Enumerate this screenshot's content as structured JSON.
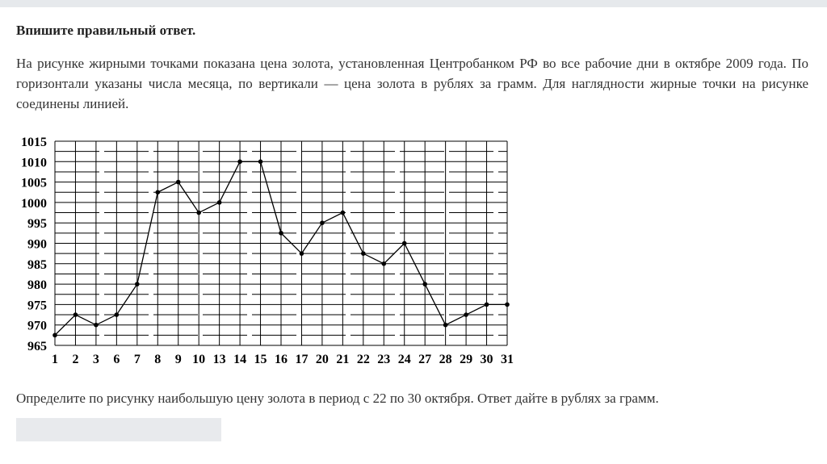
{
  "instruction": "Впишите правильный ответ.",
  "statement": "На рисунке жирными точками показана цена золота, установленная Центробанком РФ во все рабочие дни в октябре 2009 года. По горизонтали указаны числа месяца, по вертикали — цена золота в рублях за грамм. Для наглядности жирные точки на рисунке соединены линией.",
  "question": "Определите по рисунку наибольшую цену золота в период с 22 по 30 октября.  Ответ дайте в рублях за грамм.",
  "answer": {
    "value": "",
    "placeholder": ""
  },
  "chart_data": {
    "type": "line",
    "title": "",
    "xlabel": "",
    "ylabel": "",
    "categories": [
      "1",
      "2",
      "3",
      "6",
      "7",
      "8",
      "9",
      "10",
      "13",
      "14",
      "15",
      "16",
      "17",
      "20",
      "21",
      "22",
      "23",
      "24",
      "27",
      "28",
      "29",
      "30",
      "31"
    ],
    "series": [
      {
        "values": [
          967.5,
          972.5,
          970,
          972.5,
          980,
          1002.5,
          1005,
          997.5,
          1000,
          1010,
          1010,
          992.5,
          987.5,
          995,
          997.5,
          987.5,
          985,
          990,
          980,
          970,
          972.5,
          975,
          975
        ]
      }
    ],
    "ylim": [
      965,
      1015
    ],
    "yticks": [
      965,
      970,
      975,
      980,
      985,
      990,
      995,
      1000,
      1005,
      1010,
      1015
    ],
    "grid": true,
    "colors": {
      "line": "#000000",
      "grid": "#000000"
    }
  }
}
